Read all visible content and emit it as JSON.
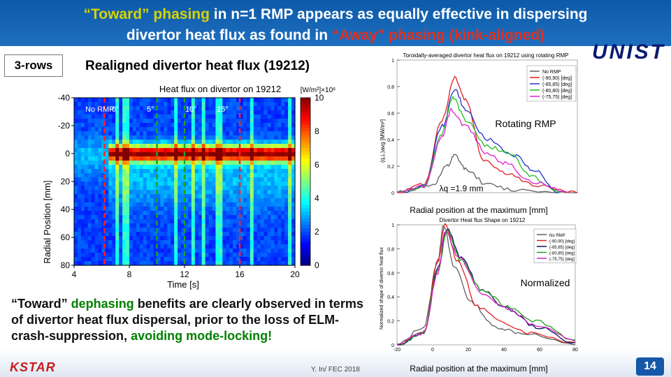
{
  "slide": {
    "title_line1_prefix": "“Toward” phasing",
    "title_line1_rest": " in n=1 RMP appears as equally effective in dispersing",
    "title_line2_prefix": "divertor heat flux as found in ",
    "title_line2_red": "“Away” phasing (kink-aligned)",
    "rows_label": "3-rows",
    "subtitle": "Realigned divertor heat flux (19212)",
    "logo": "UNIST",
    "page_number": "14",
    "footer": "Y. In/ FEC 2018",
    "kstar_logo": "KSTAR"
  },
  "bottom_text": {
    "part1": "“Toward” ",
    "part2": "dephasing",
    "part3": " benefits are clearly observed in terms of divertor heat flux dispersal, prior to the loss of ELM-crash-suppression, ",
    "part4": "avoiding mode-locking!"
  },
  "colors": {
    "header": "#1565b8",
    "accent_yellow": "#d9d200",
    "accent_red": "#e03020",
    "green": "#008000"
  },
  "chart_data": [
    {
      "type": "heatmap",
      "title": "Heat flux on divertor on 19212",
      "xlabel": "Time [s]",
      "ylabel": "Radial Position [mm]",
      "xticks": [
        "4",
        "8",
        "12",
        "16",
        "20"
      ],
      "yticks": [
        "-40",
        "-20",
        "0",
        "20",
        "40",
        "60",
        "80"
      ],
      "xlim": [
        4,
        20
      ],
      "ylim": [
        -40,
        80
      ],
      "colorbar_label": "[W/m²]×10⁶",
      "colorbar_ticks": [
        "10",
        "8",
        "6",
        "4",
        "2",
        "0"
      ],
      "colorbar_range": [
        0,
        10
      ],
      "annotations": [
        "No RMP",
        "0°",
        "5°",
        "10°",
        "15°"
      ],
      "dashed_lines": [
        {
          "time": 6.2,
          "color": "#ff2020"
        },
        {
          "time": 10.0,
          "color": "#20a020"
        },
        {
          "time": 12.0,
          "color": "#20a020"
        },
        {
          "time": 16.0,
          "color": "#ff2020"
        }
      ],
      "band": {
        "center": 0,
        "t_start": 6.5,
        "t_end": 20
      }
    },
    {
      "type": "line",
      "title": "Toroidally-averaged divertor heat flux on 19212 using rotating RMP",
      "xlabel": "Radial position at the maximum [mm]",
      "ylabel": "(q⊥)avg [MW/m²]",
      "yticks": [
        "0",
        "0.2",
        "0.4",
        "0.6",
        "0.8",
        "1"
      ],
      "ylim": [
        0,
        1.0
      ],
      "xlim": [
        -20,
        80
      ],
      "label": "Rotating RMP",
      "lambda_label": "λq =1.9 mm",
      "legend": [
        "No RMP",
        "(-90,90) [deg]",
        "(-85,85) [deg]",
        "(-80,80) [deg]",
        "(-75,75) [deg]"
      ],
      "series": [
        {
          "name": "No RMP",
          "color": "#606060",
          "points": [
            [
              -20,
              0.0
            ],
            [
              0,
              0.06
            ],
            [
              8,
              0.2
            ],
            [
              12,
              0.28
            ],
            [
              18,
              0.18
            ],
            [
              30,
              0.06
            ],
            [
              45,
              0.02
            ],
            [
              80,
              0.0
            ]
          ]
        },
        {
          "name": "(-90,90) [deg]",
          "color": "#e02020",
          "points": [
            [
              -20,
              0.0
            ],
            [
              -5,
              0.06
            ],
            [
              5,
              0.55
            ],
            [
              12,
              0.87
            ],
            [
              18,
              0.7
            ],
            [
              28,
              0.25
            ],
            [
              40,
              0.15
            ],
            [
              55,
              0.06
            ],
            [
              80,
              0.0
            ]
          ]
        },
        {
          "name": "(-85,85) [deg]",
          "color": "#2030d0",
          "points": [
            [
              -20,
              0.0
            ],
            [
              -5,
              0.05
            ],
            [
              5,
              0.5
            ],
            [
              12,
              0.78
            ],
            [
              18,
              0.62
            ],
            [
              30,
              0.4
            ],
            [
              45,
              0.28
            ],
            [
              55,
              0.18
            ],
            [
              70,
              0.0
            ]
          ]
        },
        {
          "name": "(-80,80) [deg]",
          "color": "#20c020",
          "points": [
            [
              -20,
              0.0
            ],
            [
              -5,
              0.05
            ],
            [
              5,
              0.45
            ],
            [
              11,
              0.72
            ],
            [
              18,
              0.55
            ],
            [
              30,
              0.35
            ],
            [
              42,
              0.3
            ],
            [
              55,
              0.12
            ],
            [
              70,
              0.0
            ]
          ]
        },
        {
          "name": "(-75,75) [deg]",
          "color": "#e020d0",
          "points": [
            [
              -20,
              0.0
            ],
            [
              -5,
              0.05
            ],
            [
              5,
              0.42
            ],
            [
              10,
              0.62
            ],
            [
              18,
              0.5
            ],
            [
              30,
              0.3
            ],
            [
              40,
              0.22
            ],
            [
              55,
              0.08
            ],
            [
              75,
              0.0
            ]
          ]
        }
      ]
    },
    {
      "type": "line",
      "title": "Divertor Heat flux Shape on 19212",
      "xlabel": "Radial position at the maximum [mm]",
      "ylabel": "Normalized shape of divertor heat flux",
      "label": "Normalized",
      "xticks": [
        "-20",
        "0",
        "20",
        "40",
        "60",
        "80"
      ],
      "yticks": [
        "0",
        "0.2",
        "0.4",
        "0.6",
        "0.8",
        "1"
      ],
      "xlim": [
        -20,
        80
      ],
      "ylim": [
        0,
        1.0
      ],
      "legend": [
        "No RMP",
        "(-90,90) [deg]",
        "(-85,85) [deg]",
        "(-80,80) [deg]",
        "(-75,75) [deg]"
      ],
      "series": [
        {
          "name": "No RMP",
          "color": "#606060",
          "points": [
            [
              -20,
              0.0
            ],
            [
              -5,
              0.15
            ],
            [
              3,
              0.7
            ],
            [
              6,
              1.0
            ],
            [
              12,
              0.65
            ],
            [
              22,
              0.35
            ],
            [
              35,
              0.15
            ],
            [
              50,
              0.1
            ],
            [
              80,
              0.0
            ]
          ]
        },
        {
          "name": "(-90,90) [deg]",
          "color": "#e02020",
          "points": [
            [
              -20,
              0.0
            ],
            [
              -5,
              0.1
            ],
            [
              3,
              0.7
            ],
            [
              7,
              1.0
            ],
            [
              14,
              0.7
            ],
            [
              25,
              0.32
            ],
            [
              40,
              0.18
            ],
            [
              55,
              0.1
            ],
            [
              80,
              0.02
            ]
          ]
        },
        {
          "name": "(-85,85) [deg]",
          "color": "#101060",
          "points": [
            [
              -20,
              0.0
            ],
            [
              -5,
              0.1
            ],
            [
              3,
              0.65
            ],
            [
              8,
              0.97
            ],
            [
              16,
              0.72
            ],
            [
              28,
              0.45
            ],
            [
              42,
              0.3
            ],
            [
              58,
              0.15
            ],
            [
              80,
              0.02
            ]
          ]
        },
        {
          "name": "(-80,80) [deg]",
          "color": "#20a020",
          "points": [
            [
              -20,
              0.0
            ],
            [
              -5,
              0.1
            ],
            [
              3,
              0.62
            ],
            [
              8,
              0.95
            ],
            [
              16,
              0.7
            ],
            [
              28,
              0.45
            ],
            [
              42,
              0.32
            ],
            [
              58,
              0.2
            ],
            [
              80,
              0.04
            ]
          ]
        },
        {
          "name": "(-75,75) [deg]",
          "color": "#d020c0",
          "points": [
            [
              -20,
              0.0
            ],
            [
              -5,
              0.1
            ],
            [
              3,
              0.6
            ],
            [
              7,
              0.95
            ],
            [
              15,
              0.72
            ],
            [
              28,
              0.42
            ],
            [
              42,
              0.3
            ],
            [
              58,
              0.16
            ],
            [
              80,
              0.03
            ]
          ]
        }
      ]
    }
  ]
}
